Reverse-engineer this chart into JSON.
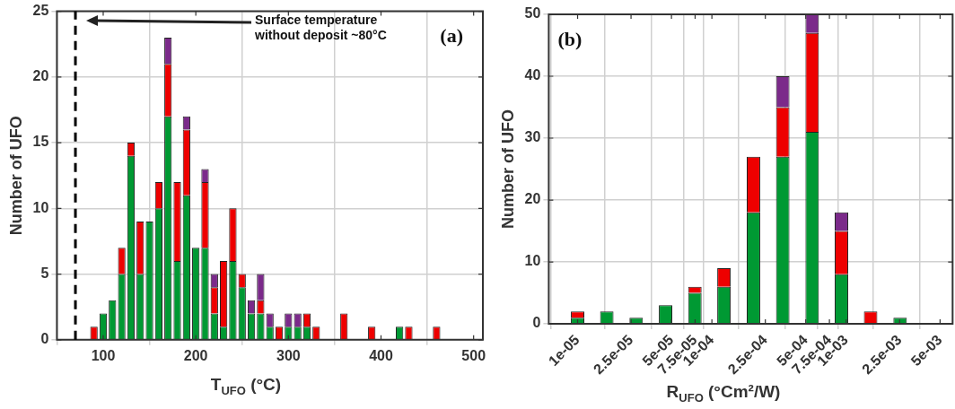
{
  "chart_data": [
    {
      "type": "bar",
      "stacked": true,
      "xlabel": "T$_{UFO}$ (°C)",
      "ylabel": "Number of UFO",
      "x": [
        90,
        100,
        110,
        120,
        130,
        140,
        150,
        160,
        170,
        180,
        190,
        200,
        210,
        220,
        230,
        240,
        250,
        260,
        270,
        280,
        290,
        300,
        310,
        320,
        330,
        340,
        350,
        360,
        370,
        380,
        390,
        400,
        410,
        420,
        430,
        440,
        450,
        460
      ],
      "series": [
        {
          "color": "#009933",
          "values": [
            0,
            2,
            3,
            5,
            14,
            5,
            9,
            10,
            17,
            6,
            11,
            7,
            7,
            2,
            1,
            6,
            4,
            2,
            2,
            1,
            0,
            1,
            1,
            1,
            0,
            0,
            0,
            0,
            0,
            0,
            0,
            0,
            0,
            1,
            0,
            0,
            0,
            0
          ]
        },
        {
          "color": "#ee0000",
          "values": [
            1,
            0,
            0,
            2,
            1,
            4,
            0,
            2,
            4,
            6,
            5,
            0,
            5,
            2,
            5,
            4,
            1,
            0,
            1,
            0,
            1,
            0,
            0,
            1,
            1,
            0,
            0,
            2,
            0,
            0,
            1,
            0,
            0,
            0,
            1,
            0,
            0,
            1
          ]
        },
        {
          "color": "#7b2a8a",
          "values": [
            0,
            0,
            0,
            0,
            0,
            0,
            0,
            0,
            2,
            0,
            1,
            0,
            1,
            1,
            0,
            0,
            0,
            1,
            2,
            1,
            0,
            1,
            1,
            0,
            0,
            0,
            0,
            0,
            0,
            0,
            0,
            0,
            0,
            0,
            0,
            0,
            0,
            0
          ]
        }
      ],
      "xlim": [
        50,
        510
      ],
      "xticks": [
        100,
        200,
        300,
        400,
        500
      ],
      "ylim": [
        0,
        25
      ],
      "yticks": [
        0,
        5,
        10,
        15,
        20,
        25
      ],
      "grid": true,
      "legend": false,
      "ref_lines": [
        {
          "axis": "x",
          "value": 70,
          "label": "Surface temperature without deposit ~80°C",
          "color": "#000000",
          "line_style": "dashed"
        }
      ],
      "annotations": [
        "(a)"
      ]
    },
    {
      "type": "bar",
      "stacked": true,
      "log": "x",
      "xlabel": "R$_{UFO}$ (°Cm²/W)",
      "ylabel": "Number of UFO",
      "x": [
        1e-05,
        1.65e-05,
        2.73e-05,
        4.52e-05,
        7.47e-05,
        0.000123,
        0.000204,
        0.000337,
        0.000558,
        0.000922,
        0.00152,
        0.00252
      ],
      "series": [
        {
          "color": "#009933",
          "values": [
            1,
            2,
            1,
            3,
            5,
            6,
            18,
            27,
            31,
            8,
            0,
            1
          ]
        },
        {
          "color": "#ee0000",
          "values": [
            1,
            0,
            0,
            0,
            1,
            3,
            9,
            8,
            16,
            7,
            2,
            0
          ]
        },
        {
          "color": "#7b2a8a",
          "values": [
            0,
            0,
            0,
            0,
            0,
            0,
            0,
            5,
            3,
            3,
            0,
            0
          ]
        }
      ],
      "xlim": [
        6.1e-06,
        0.0062
      ],
      "xticks": [
        {
          "value": 1e-05,
          "label": "1e-05"
        },
        {
          "value": 2.5e-05,
          "label": "2.5e-05"
        },
        {
          "value": 5e-05,
          "label": "5e-05"
        },
        {
          "value": 7.5e-05,
          "label": "7.5e-05"
        },
        {
          "value": 0.0001,
          "label": "1e-04"
        },
        {
          "value": 0.00025,
          "label": "2.5e-04"
        },
        {
          "value": 0.0005,
          "label": "5e-04"
        },
        {
          "value": 0.00075,
          "label": "7.5e-04"
        },
        {
          "value": 0.001,
          "label": "1e-03"
        },
        {
          "value": 0.0025,
          "label": "2.5e-03"
        },
        {
          "value": 0.005,
          "label": "5e-03"
        }
      ],
      "ylim": [
        0,
        50
      ],
      "yticks": [
        0,
        10,
        20,
        30,
        40,
        50
      ],
      "grid": true,
      "legend": false,
      "annotations": [
        "(b)"
      ]
    }
  ]
}
